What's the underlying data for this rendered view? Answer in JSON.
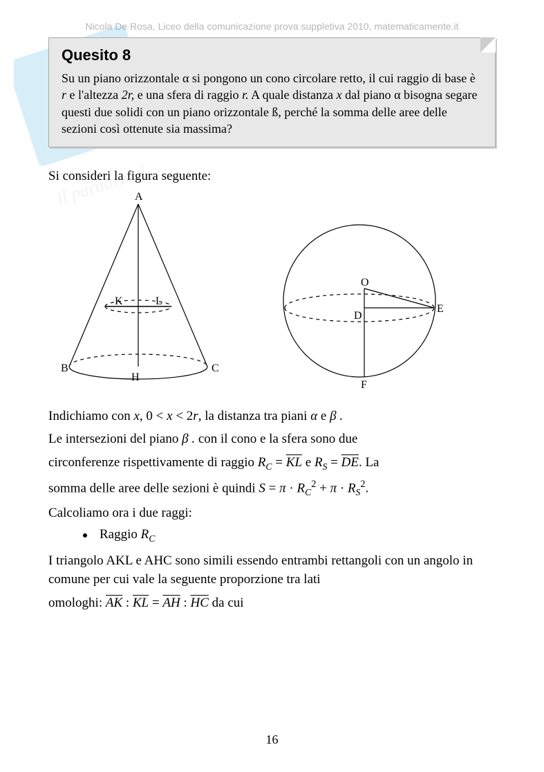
{
  "meta": {
    "header": "Nicola De Rosa, Liceo della comunicazione prova suppletiva 2010, matematicamente.it",
    "header_color": "#b7b7b7"
  },
  "questionBox": {
    "title": "Quesito 8",
    "body_html": "Su un piano orizzontale α si pongono un cono circolare retto, il cui raggio di base è <i>r</i> e l'altezza <i>2r,</i> e una sfera di raggio <i>r.</i> A quale distanza <i>x</i> dal piano α bisogna segare questi due solidi con un piano orizzontale ß, perché la somma delle aree delle sezioni così ottenute sia massima?",
    "bg": "#e8e8e8",
    "border": "#aaaaaa"
  },
  "introLine": "Si consideri la figura seguente:",
  "figures": {
    "cone": {
      "labels": {
        "A": "A",
        "B": "B",
        "C": "C",
        "H": "H",
        "K": "K",
        "L": "L"
      },
      "stroke": "#000000",
      "dash": "4,4"
    },
    "sphere": {
      "labels": {
        "O": "O",
        "D": "D",
        "E": "E",
        "F": "F"
      },
      "stroke": "#000000",
      "dash": "4,4"
    }
  },
  "paragraphs": {
    "p1_pre": "Indichiamo con ",
    "p1_mid": ",  0 < ",
    "p1_mid2": " < 2",
    "p1_post": ",  la distanza tra piani  ",
    "p1_alpha": "α",
    "p1_and": "  e  ",
    "p1_beta": "β .",
    "x": "x",
    "r": "r",
    "p2": "Le intersezioni del piano ",
    "p2_mid": "  con il cono e la sfera sono due",
    "p3_pre": "circonferenze rispettivamente di raggio  ",
    "RC_eq_KL_pre": "R",
    "RC_sub": "C",
    "eq": " = ",
    "KL": "KL",
    "p3_and": "  e  ",
    "RS_sub": "S",
    "DE": "DE",
    "p3_post": ". La",
    "p4_pre": "somma delle aree delle sezioni è quindi   ",
    "S": "S",
    "pi": "π",
    "dot": "·",
    "plus": " + ",
    "period": ".",
    "p5": "Calcoliamo ora i due raggi:",
    "bullet_label_pre": "Raggio  ",
    "p6": "I triangolo AKL e AHC sono simili essendo entrambi rettangoli con un angolo in comune per cui vale la seguente proporzione tra lati",
    "p7_pre": "omologhi:  ",
    "AK": "AK",
    "colon": " : ",
    "AH": "AH",
    "HC": "HC",
    "p7_post": "  da cui"
  },
  "pageNumber": "16",
  "watermark": {
    "color": "#2aa6de",
    "text_italic": "il paradisi"
  }
}
